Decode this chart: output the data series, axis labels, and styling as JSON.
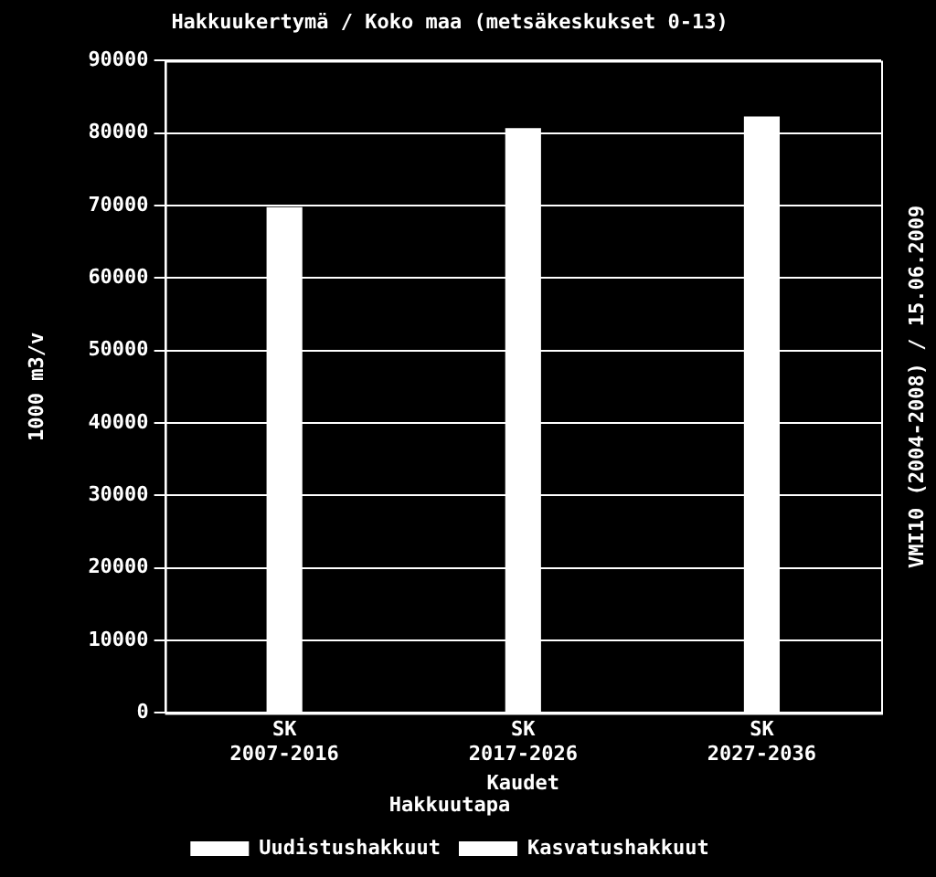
{
  "chart_data": {
    "type": "bar",
    "title": "Hakkuukertymä / Koko maa (metsäkeskukset 0-13)",
    "xlabel": "Kaudet",
    "ylabel": "1000 m3/v",
    "legend_title": "Hakkuutapa",
    "annotations": [
      "VMI10 (2004-2008) / 15.06.2009"
    ],
    "categories": [
      "SK 2007-2016",
      "SK 2017-2026",
      "SK 2027-2036"
    ],
    "series": [
      {
        "name": "Uudistushakkuut",
        "color": "#ffffff",
        "values": [
          69800,
          80700,
          82300
        ]
      },
      {
        "name": "Kasvatushakkuut",
        "color": "#ffffff",
        "values": [
          null,
          null,
          null
        ]
      }
    ],
    "stacked": true,
    "ylim": [
      0,
      90000
    ],
    "yticks": [
      0,
      10000,
      20000,
      30000,
      40000,
      50000,
      60000,
      70000,
      80000,
      90000
    ],
    "grid": "y",
    "legend": "bottom"
  }
}
